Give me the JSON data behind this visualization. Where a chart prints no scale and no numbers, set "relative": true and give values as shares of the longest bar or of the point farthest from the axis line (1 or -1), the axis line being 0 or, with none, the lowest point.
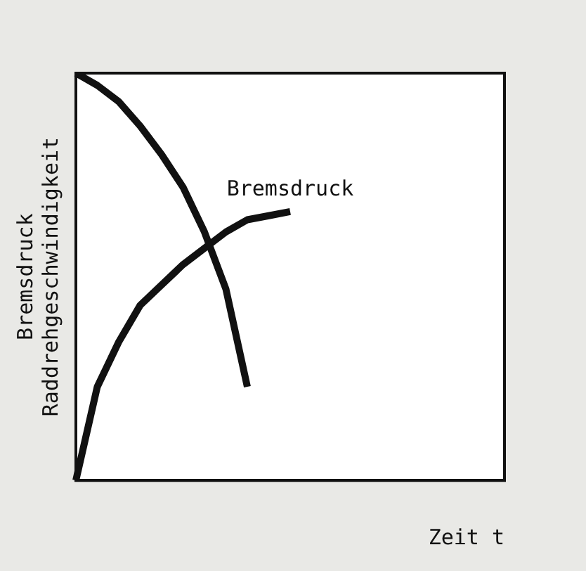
{
  "chart_data": {
    "type": "line",
    "relative": true,
    "xlabel": "Zeit t",
    "ylabel": "Bremsdruck\nRaddrehgeschwindigkeit",
    "categories": [
      null,
      null,
      null,
      null,
      null,
      null,
      null,
      null,
      null,
      null,
      null,
      null,
      null,
      null,
      null,
      null,
      null,
      null,
      null,
      null,
      null
    ],
    "grid": false,
    "legend": false,
    "marker": "none",
    "line_style": "solid",
    "series": [
      {
        "color": "#111111",
        "values": [
          1,
          0.97,
          0.93,
          0.87,
          0.8,
          0.72,
          0.61,
          0.47,
          0.23,
          null,
          null,
          null,
          null,
          null,
          null,
          null,
          null,
          null,
          null,
          null,
          null
        ]
      },
      {
        "name": "Bremsdruck",
        "color": "#111111",
        "values": [
          0,
          0.23,
          0.34,
          0.43,
          0.48,
          0.53,
          0.57,
          0.61,
          0.64,
          0.65,
          0.66,
          null,
          null,
          null,
          null,
          null,
          null,
          null,
          null,
          null,
          null
        ]
      }
    ]
  }
}
